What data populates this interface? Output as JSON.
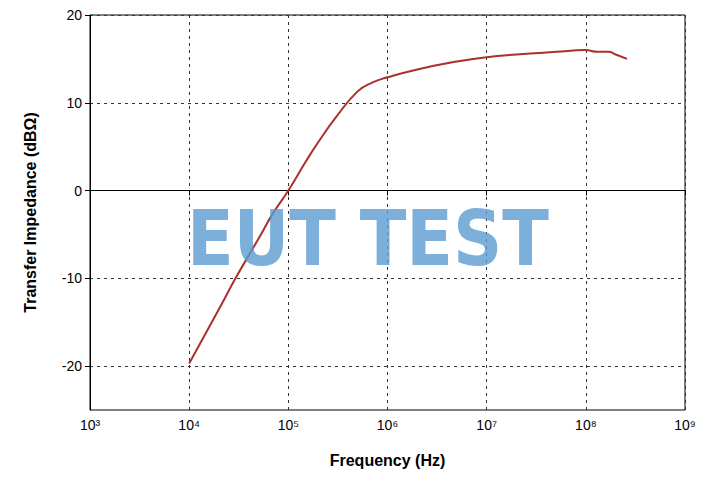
{
  "chart_data": {
    "type": "line",
    "x_label": "Frequency (Hz)",
    "y_label": "Transfer Impedance (dBΩ)",
    "annotations": [
      "EUT TEST"
    ],
    "x": [
      10000,
      20000,
      30000,
      50000,
      70000,
      100000,
      150000,
      200000,
      300000,
      500000,
      700000,
      1000000,
      2000000,
      5000000,
      10000000,
      20000000,
      50000000,
      100000000,
      130000000,
      170000000,
      200000000,
      260000000
    ],
    "values": [
      -19.7,
      -13.5,
      -9.8,
      -5.5,
      -2.6,
      0,
      3.3,
      5.5,
      8.3,
      11.3,
      12.3,
      12.9,
      13.8,
      14.7,
      15.2,
      15.5,
      15.8,
      16.0,
      15.8,
      15.8,
      15.5,
      15.0
    ],
    "color": "#a8312c",
    "xlim": [
      1000,
      1000000000
    ],
    "ylim": [
      -25,
      20
    ],
    "xticks": [
      {
        "value": 1000,
        "label": "10³"
      },
      {
        "value": 10000,
        "label": "10⁴"
      },
      {
        "value": 100000,
        "label": "10⁵"
      },
      {
        "value": 1000000,
        "label": "10⁶"
      },
      {
        "value": 10000000,
        "label": "10⁷"
      },
      {
        "value": 100000000,
        "label": "10⁸"
      },
      {
        "value": 1000000000,
        "label": "10⁹"
      }
    ],
    "yticks": [
      -20,
      -10,
      0,
      10,
      20
    ],
    "log": "x",
    "grid": true
  }
}
